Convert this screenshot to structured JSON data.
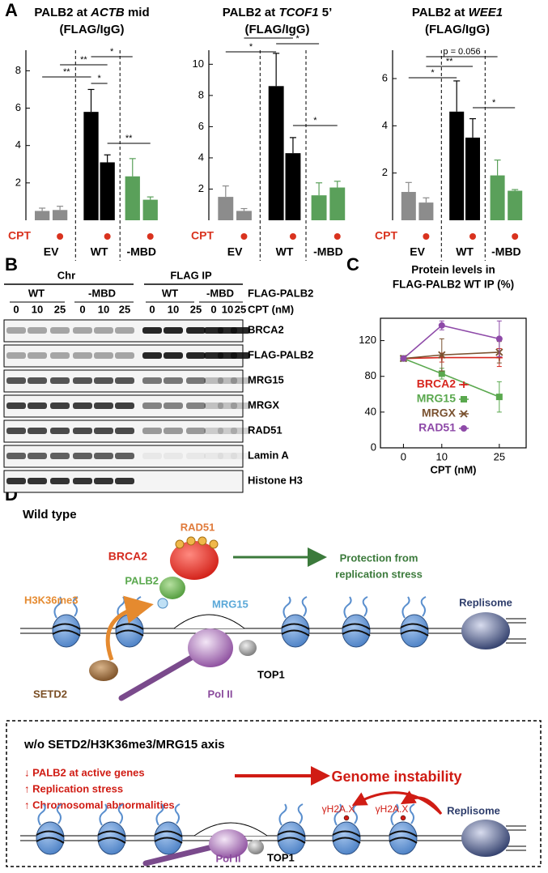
{
  "panel_labels": [
    "A",
    "B",
    "C",
    "D"
  ],
  "chart_data": [
    {
      "type": "bar",
      "title": [
        [
          "PALB2 at ",
          "ACTB",
          " mid"
        ],
        "(FLAG/IgG)"
      ],
      "categories": [
        null,
        null,
        null,
        null,
        null,
        null
      ],
      "values": [
        0.5,
        0.55,
        5.8,
        3.1,
        2.35,
        1.1
      ],
      "errors": [
        0.15,
        0.2,
        1.2,
        0.4,
        0.95,
        0.15
      ],
      "colors": [
        "#8c8c8c",
        "#8c8c8c",
        "#000000",
        "#000000",
        "#5aa05a",
        "#5aa05a"
      ],
      "ylim": [
        0,
        9.1
      ],
      "yticks": [
        2,
        4,
        6,
        8
      ],
      "treatment_label": "CPT",
      "treated": [
        false,
        true,
        false,
        true,
        false,
        true
      ],
      "groups": [
        "EV",
        "WT",
        "-MBD"
      ],
      "annotations": [
        "**",
        "**",
        "*",
        "*",
        "**"
      ]
    },
    {
      "type": "bar",
      "title": [
        [
          "PALB2 at ",
          "TCOF1",
          " 5’"
        ],
        "(FLAG/IgG)"
      ],
      "categories": [
        null,
        null,
        null,
        null,
        null,
        null
      ],
      "values": [
        1.5,
        0.6,
        8.6,
        4.3,
        1.6,
        2.1
      ],
      "errors": [
        0.7,
        0.15,
        2.1,
        1.0,
        0.8,
        0.4
      ],
      "colors": [
        "#8c8c8c",
        "#8c8c8c",
        "#000000",
        "#000000",
        "#5aa05a",
        "#5aa05a"
      ],
      "ylim": [
        0,
        10.9
      ],
      "yticks": [
        2,
        4,
        6,
        8,
        10
      ],
      "treatment_label": "CPT",
      "treated": [
        false,
        true,
        false,
        true,
        false,
        true
      ],
      "groups": [
        "EV",
        "WT",
        "-MBD"
      ],
      "annotations": [
        "*",
        "**",
        "*",
        "*"
      ]
    },
    {
      "type": "bar",
      "title": [
        [
          "PALB2 at ",
          "WEE1"
        ],
        "(FLAG/IgG)"
      ],
      "categories": [
        null,
        null,
        null,
        null,
        null,
        null
      ],
      "values": [
        1.2,
        0.75,
        4.6,
        3.5,
        1.9,
        1.25
      ],
      "errors": [
        0.4,
        0.2,
        1.3,
        0.8,
        0.65,
        0.05
      ],
      "colors": [
        "#8c8c8c",
        "#8c8c8c",
        "#000000",
        "#000000",
        "#5aa05a",
        "#5aa05a"
      ],
      "ylim": [
        0,
        7.2
      ],
      "yticks": [
        2,
        4,
        6
      ],
      "treatment_label": "CPT",
      "treated": [
        false,
        true,
        false,
        true,
        false,
        true
      ],
      "groups": [
        "EV",
        "WT",
        "-MBD"
      ],
      "annotations": [
        "p = 0.056",
        "**",
        "*",
        "*"
      ]
    },
    {
      "type": "line",
      "title": [
        "Protein levels in",
        "FLAG-PALB2 WT IP (%)"
      ],
      "x": [
        0,
        10,
        25
      ],
      "xlim": [
        -6,
        32
      ],
      "xticks": [
        0,
        10,
        25
      ],
      "xlabel": "CPT (nM)",
      "ylim": [
        0,
        145
      ],
      "yticks": [
        0,
        40,
        80,
        120
      ],
      "legend": "lower center",
      "series": [
        {
          "name": "BRCA2",
          "color": "#d7261e",
          "marker": "plus",
          "values": [
            100,
            101,
            101
          ],
          "errors": [
            0,
            5,
            10
          ]
        },
        {
          "name": "MRG15",
          "color": "#5aa84e",
          "marker": "square",
          "values": [
            100,
            83,
            57
          ],
          "errors": [
            0,
            6,
            17
          ]
        },
        {
          "name": "MRGX",
          "color": "#7a5230",
          "marker": "x",
          "values": [
            100,
            104,
            107
          ],
          "errors": [
            0,
            18,
            12
          ]
        },
        {
          "name": "RAD51",
          "color": "#8e4aa8",
          "marker": "circle",
          "values": [
            100,
            137,
            122
          ],
          "errors": [
            0,
            5,
            20
          ]
        }
      ]
    }
  ],
  "blot": {
    "groups": [
      {
        "label": "Chr",
        "subgroups": [
          "WT",
          "-MBD"
        ]
      },
      {
        "label": "FLAG IP",
        "subgroups": [
          "WT",
          "-MBD"
        ]
      }
    ],
    "lanes": [
      "0",
      "10",
      "25"
    ],
    "construct_label": "FLAG-PALB2",
    "cpt_label": "CPT (nM)",
    "rows": [
      "BRCA2",
      "FLAG-PALB2",
      "MRG15",
      "MRGX",
      "RAD51",
      "Lamin A",
      "Histone H3"
    ]
  },
  "diagram": {
    "wild_type": {
      "title": "Wild type",
      "brca2": "BRCA2",
      "rad51": "RAD51",
      "palb2": "PALB2",
      "h3k36me3": "H3K36me3",
      "mrg15": "MRG15",
      "outcome": [
        "Protection from",
        "replication stress"
      ],
      "replisome": "Replisome",
      "setd2": "SETD2",
      "pol2": "Pol II",
      "top1": "TOP1"
    },
    "mutant": {
      "title": "w/o SETD2/H3K36me3/MRG15 axis",
      "effects": [
        "↓ PALB2 at active genes",
        "↑ Replication stress",
        "↑ Chromosomal abnormalities"
      ],
      "outcome": "Genome instability",
      "marks": [
        "γH2A.X",
        "γH2A.X"
      ],
      "replisome": "Replisome",
      "pol2": "Pol II",
      "top1": "TOP1"
    }
  }
}
